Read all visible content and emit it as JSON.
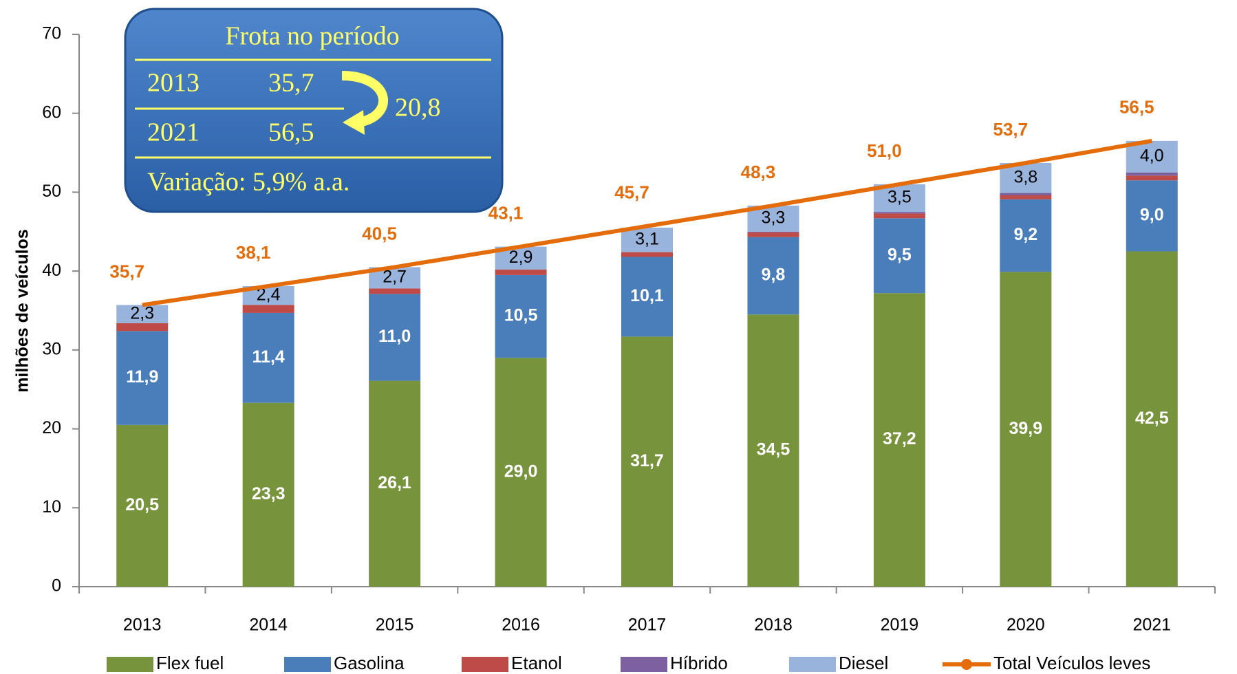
{
  "chart_data": {
    "type": "bar",
    "stacked": true,
    "y_label": "milhões de veículos",
    "categories": [
      "2013",
      "2014",
      "2015",
      "2016",
      "2017",
      "2018",
      "2019",
      "2020",
      "2021"
    ],
    "ylim": [
      0,
      70
    ],
    "yticks": [
      0,
      10,
      20,
      30,
      40,
      50,
      60,
      70
    ],
    "series": [
      {
        "name": "Flex fuel",
        "color": "#77933c",
        "label_color": "#ffffff",
        "label_bold": true,
        "values": [
          20.5,
          23.3,
          26.1,
          29.0,
          31.7,
          34.5,
          37.2,
          39.9,
          42.5
        ],
        "value_labels": [
          "20,5",
          "23,3",
          "26,1",
          "29,0",
          "31,7",
          "34,5",
          "37,2",
          "39,9",
          "42,5"
        ]
      },
      {
        "name": "Gasolina",
        "color": "#4a7ebb",
        "label_color": "#ffffff",
        "label_bold": true,
        "values": [
          11.9,
          11.4,
          11.0,
          10.5,
          10.1,
          9.8,
          9.5,
          9.2,
          9.0
        ],
        "value_labels": [
          "11,9",
          "11,4",
          "11,0",
          "10,5",
          "10,1",
          "9,8",
          "9,5",
          "9,2",
          "9,0"
        ]
      },
      {
        "name": "Etanol",
        "color": "#be4b48",
        "values": [
          1.0,
          1.0,
          0.7,
          0.7,
          0.6,
          0.6,
          0.6,
          0.5,
          0.6
        ]
      },
      {
        "name": "Híbrido",
        "color": "#7d60a0",
        "values": [
          0.0,
          0.0,
          0.0,
          0.0,
          0.0,
          0.1,
          0.2,
          0.3,
          0.4
        ]
      },
      {
        "name": "Diesel",
        "color": "#98b4dc",
        "label_color": "#000000",
        "label_bold": false,
        "values": [
          2.3,
          2.4,
          2.7,
          2.9,
          3.1,
          3.3,
          3.5,
          3.8,
          4.0
        ],
        "value_labels": [
          "2,3",
          "2,4",
          "2,7",
          "2,9",
          "3,1",
          "3,3",
          "3,5",
          "3,8",
          "4,0"
        ]
      },
      {
        "name": "Total Veículos leves",
        "type": "line",
        "color": "#e46c0a",
        "label_color": "#e46c0a",
        "label_bold": true,
        "values": [
          35.7,
          38.1,
          40.5,
          43.1,
          45.7,
          48.3,
          51.0,
          53.7,
          56.5
        ],
        "value_labels": [
          "35,7",
          "38,1",
          "40,5",
          "43,1",
          "45,7",
          "48,3",
          "51,0",
          "53,7",
          "56,5"
        ]
      }
    ],
    "legend": "bottom",
    "info_box": {
      "title": "Frota no período",
      "rows": [
        [
          "2013",
          "35,7"
        ],
        [
          "2021",
          "56,5"
        ]
      ],
      "difference": "20,8",
      "footer": "Variação: 5,9% a.a."
    }
  }
}
